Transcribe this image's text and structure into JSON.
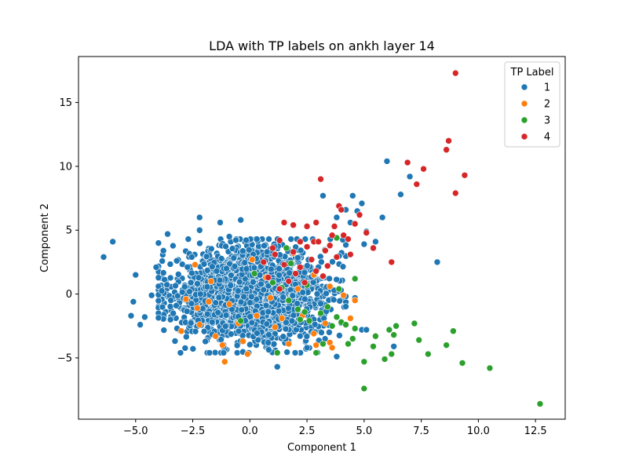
{
  "chart_data": {
    "type": "scatter",
    "title": "LDA with TP labels on ankh layer 14",
    "xlabel": "Component 1",
    "ylabel": "Component 2",
    "xlim": [
      -7.5,
      13.8
    ],
    "ylim": [
      -9.8,
      18.6
    ],
    "xticks": [
      -5.0,
      -2.5,
      0.0,
      2.5,
      5.0,
      7.5,
      10.0,
      12.5
    ],
    "xtick_labels": [
      "−5.0",
      "−2.5",
      "0.0",
      "2.5",
      "5.0",
      "7.5",
      "10.0",
      "12.5"
    ],
    "yticks": [
      -5,
      0,
      5,
      10,
      15
    ],
    "ytick_labels": [
      "−5",
      "0",
      "5",
      "10",
      "15"
    ],
    "grid": false,
    "legend": {
      "title": "TP Label",
      "placement": "upper-right"
    },
    "series": [
      {
        "name": "1",
        "color": "#1f77b4",
        "cluster": {
          "center": [
            0.0,
            0.0
          ],
          "approx_count": 2200,
          "x_range": [
            -4.0,
            4.2
          ],
          "y_range": [
            -4.6,
            4.3
          ]
        },
        "outliers": [
          [
            -6.4,
            2.9
          ],
          [
            -6.0,
            4.1
          ],
          [
            -5.0,
            1.5
          ],
          [
            -5.2,
            -1.7
          ],
          [
            -5.1,
            -0.6
          ],
          [
            -4.8,
            -2.4
          ],
          [
            -4.6,
            -1.8
          ],
          [
            -4.3,
            -0.1
          ],
          [
            -4.1,
            2.1
          ],
          [
            -3.6,
            4.7
          ],
          [
            -3.2,
            2.6
          ],
          [
            -2.2,
            6.0
          ],
          [
            -2.2,
            5.0
          ],
          [
            -1.3,
            5.6
          ],
          [
            -0.9,
            4.5
          ],
          [
            -0.4,
            5.8
          ],
          [
            1.2,
            -5.7
          ],
          [
            2.5,
            -4.2
          ],
          [
            3.8,
            -4.9
          ],
          [
            3.8,
            6.0
          ],
          [
            4.2,
            6.6
          ],
          [
            4.4,
            5.6
          ],
          [
            4.7,
            6.5
          ],
          [
            4.9,
            7.1
          ],
          [
            4.5,
            7.7
          ],
          [
            3.2,
            7.7
          ],
          [
            5.1,
            4.9
          ],
          [
            5.0,
            3.9
          ],
          [
            5.5,
            4.1
          ],
          [
            5.8,
            6.0
          ],
          [
            4.9,
            -2.8
          ],
          [
            5.1,
            -2.8
          ],
          [
            6.0,
            10.4
          ],
          [
            6.6,
            7.8
          ],
          [
            7.0,
            9.2
          ],
          [
            8.2,
            2.5
          ],
          [
            6.3,
            -4.1
          ],
          [
            4.6,
            -0.3
          ]
        ]
      },
      {
        "name": "2",
        "color": "#ff7f0e",
        "points": [
          [
            -3.0,
            -2.9
          ],
          [
            -2.8,
            -0.4
          ],
          [
            -2.3,
            -1.1
          ],
          [
            -2.2,
            -2.4
          ],
          [
            -1.8,
            -0.6
          ],
          [
            -1.7,
            1.0
          ],
          [
            -1.5,
            -3.3
          ],
          [
            -1.2,
            -4.0
          ],
          [
            -1.1,
            -5.3
          ],
          [
            -0.9,
            -0.8
          ],
          [
            -0.5,
            -2.3
          ],
          [
            -0.1,
            -4.7
          ],
          [
            0.3,
            -1.7
          ],
          [
            0.7,
            1.3
          ],
          [
            1.1,
            -2.6
          ],
          [
            1.4,
            -1.9
          ],
          [
            1.7,
            -3.9
          ],
          [
            2.1,
            0.4
          ],
          [
            2.3,
            -1.7
          ],
          [
            2.8,
            1.5
          ],
          [
            2.8,
            -3.1
          ],
          [
            3.3,
            -2.3
          ],
          [
            3.5,
            0.6
          ],
          [
            3.5,
            -3.8
          ],
          [
            4.1,
            -0.1
          ],
          [
            4.4,
            -1.9
          ],
          [
            4.6,
            -0.5
          ],
          [
            -2.4,
            2.3
          ],
          [
            0.1,
            2.7
          ],
          [
            1.9,
            3.2
          ],
          [
            2.9,
            -4.0
          ],
          [
            3.6,
            -4.2
          ],
          [
            -0.3,
            -3.7
          ],
          [
            0.9,
            -0.3
          ]
        ]
      },
      {
        "name": "3",
        "color": "#2ca02c",
        "points": [
          [
            -0.4,
            -2.1
          ],
          [
            0.2,
            1.6
          ],
          [
            1.2,
            -4.6
          ],
          [
            1.4,
            0.5
          ],
          [
            1.7,
            -0.5
          ],
          [
            2.1,
            -1.2
          ],
          [
            2.2,
            -2.0
          ],
          [
            2.4,
            -1.4
          ],
          [
            2.5,
            0.7
          ],
          [
            2.6,
            -2.1
          ],
          [
            2.9,
            -4.6
          ],
          [
            3.1,
            -1.5
          ],
          [
            3.2,
            -3.9
          ],
          [
            3.4,
            -1.0
          ],
          [
            3.6,
            -2.5
          ],
          [
            3.8,
            -1.8
          ],
          [
            3.9,
            0.4
          ],
          [
            4.0,
            -2.2
          ],
          [
            4.2,
            -2.4
          ],
          [
            4.3,
            -3.9
          ],
          [
            4.5,
            -3.5
          ],
          [
            4.6,
            -2.7
          ],
          [
            4.6,
            1.2
          ],
          [
            5.0,
            -5.3
          ],
          [
            5.0,
            -7.4
          ],
          [
            5.4,
            -4.1
          ],
          [
            5.5,
            -3.3
          ],
          [
            5.9,
            -5.1
          ],
          [
            6.1,
            -2.8
          ],
          [
            6.2,
            -4.7
          ],
          [
            6.3,
            -3.2
          ],
          [
            6.4,
            -2.5
          ],
          [
            7.2,
            -2.3
          ],
          [
            7.4,
            -3.6
          ],
          [
            7.8,
            -4.7
          ],
          [
            8.6,
            -4.0
          ],
          [
            8.9,
            -2.9
          ],
          [
            9.3,
            -5.4
          ],
          [
            10.5,
            -5.8
          ],
          [
            12.7,
            -8.6
          ],
          [
            1.6,
            3.6
          ],
          [
            3.8,
            4.4
          ],
          [
            1.0,
            0.9
          ],
          [
            1.8,
            2.4
          ]
        ]
      },
      {
        "name": "4",
        "color": "#d62728",
        "points": [
          [
            0.6,
            2.5
          ],
          [
            1.1,
            3.1
          ],
          [
            1.3,
            4.2
          ],
          [
            1.5,
            2.3
          ],
          [
            1.5,
            5.6
          ],
          [
            1.7,
            1.0
          ],
          [
            1.9,
            3.3
          ],
          [
            1.9,
            5.4
          ],
          [
            2.2,
            4.1
          ],
          [
            2.2,
            2.1
          ],
          [
            2.5,
            3.7
          ],
          [
            2.5,
            5.3
          ],
          [
            2.7,
            2.7
          ],
          [
            2.8,
            4.1
          ],
          [
            2.9,
            5.6
          ],
          [
            3.0,
            4.1
          ],
          [
            3.1,
            9.0
          ],
          [
            3.3,
            3.4
          ],
          [
            3.4,
            2.2
          ],
          [
            3.5,
            3.8
          ],
          [
            3.6,
            4.6
          ],
          [
            3.7,
            5.3
          ],
          [
            3.8,
            2.9
          ],
          [
            3.9,
            6.9
          ],
          [
            4.0,
            6.6
          ],
          [
            4.1,
            4.6
          ],
          [
            4.3,
            4.3
          ],
          [
            4.6,
            5.5
          ],
          [
            4.8,
            6.2
          ],
          [
            5.1,
            4.8
          ],
          [
            5.4,
            3.6
          ],
          [
            6.2,
            2.5
          ],
          [
            6.9,
            10.3
          ],
          [
            7.3,
            8.6
          ],
          [
            7.6,
            9.8
          ],
          [
            8.6,
            11.3
          ],
          [
            8.7,
            12.0
          ],
          [
            9.0,
            17.3
          ],
          [
            9.0,
            7.9
          ],
          [
            9.4,
            9.3
          ],
          [
            1.0,
            3.6
          ],
          [
            2.0,
            1.6
          ],
          [
            3.2,
            1.4
          ],
          [
            0.8,
            1.3
          ],
          [
            2.4,
            0.9
          ],
          [
            4.4,
            3.1
          ],
          [
            1.3,
            0.4
          ],
          [
            2.9,
            1.8
          ]
        ]
      }
    ]
  }
}
